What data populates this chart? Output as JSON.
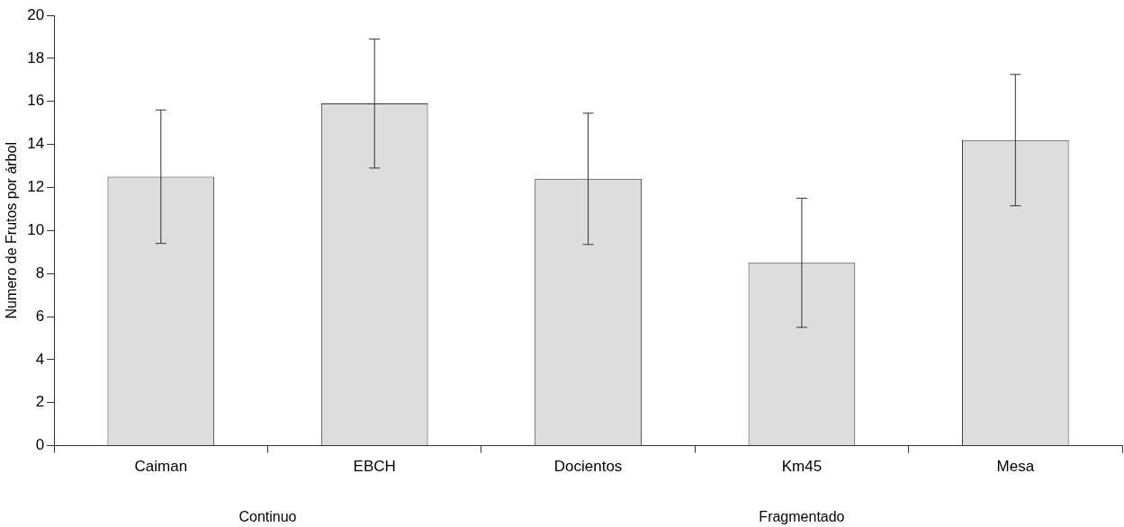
{
  "chart_data": {
    "type": "bar",
    "ylabel": "Numero de Frutos por árbol",
    "categories": [
      "Caiman",
      "EBCH",
      "Docientos",
      "Km45",
      "Mesa"
    ],
    "values": [
      12.5,
      15.9,
      12.4,
      8.5,
      14.2
    ],
    "errors": [
      3.1,
      3.0,
      3.05,
      3.0,
      3.05
    ],
    "color": "#dddddd",
    "ylim": [
      0,
      20
    ],
    "yticks": [
      0,
      2,
      4,
      6,
      8,
      10,
      12,
      14,
      16,
      18,
      20
    ],
    "grid": false,
    "legend": false,
    "annotations": [
      "Continuo",
      "Fragmentado"
    ]
  }
}
